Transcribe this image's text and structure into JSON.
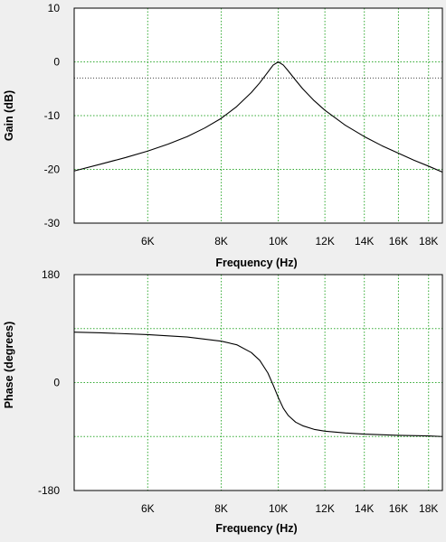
{
  "chart_data": [
    {
      "type": "line",
      "xlabel": "Frequency (Hz)",
      "ylabel": "Gain (dB)",
      "x_scale": "log",
      "xlim": [
        4500,
        19000
      ],
      "ylim": [
        -30,
        10
      ],
      "grid": true,
      "x_ticks": [
        6000,
        8000,
        10000,
        12000,
        14000,
        16000,
        18000
      ],
      "x_tick_labels": [
        "6K",
        "8K",
        "10K",
        "12K",
        "14K",
        "16K",
        "18K"
      ],
      "y_ticks": [
        10,
        0,
        -10,
        -20,
        -30
      ],
      "y_tick_labels": [
        "10",
        "0",
        "-10",
        "-20",
        "-30"
      ],
      "reference_line": {
        "y": -3,
        "style": "dotted"
      },
      "series": [
        {
          "x": [
            4500,
            5000,
            5500,
            6000,
            6500,
            7000,
            7500,
            8000,
            8500,
            9000,
            9300,
            9600,
            9800,
            10000,
            10200,
            10400,
            10700,
            11000,
            11500,
            12000,
            13000,
            14000,
            15000,
            16000,
            17000,
            18000,
            19000
          ],
          "y": [
            -20.3,
            -19.0,
            -17.8,
            -16.6,
            -15.3,
            -13.9,
            -12.3,
            -10.5,
            -8.3,
            -5.7,
            -3.9,
            -1.9,
            -0.6,
            0.0,
            -0.6,
            -1.7,
            -3.4,
            -5.0,
            -7.2,
            -9.0,
            -11.8,
            -13.9,
            -15.6,
            -17.0,
            -18.3,
            -19.4,
            -20.5
          ]
        }
      ]
    },
    {
      "type": "line",
      "xlabel": "Frequency (Hz)",
      "ylabel": "Phase (degrees)",
      "x_scale": "log",
      "xlim": [
        4500,
        19000
      ],
      "ylim": [
        -180,
        180
      ],
      "grid": true,
      "x_ticks": [
        6000,
        8000,
        10000,
        12000,
        14000,
        16000,
        18000
      ],
      "x_tick_labels": [
        "6K",
        "8K",
        "10K",
        "12K",
        "14K",
        "16K",
        "18K"
      ],
      "y_ticks": [
        180,
        90,
        0,
        -90,
        -180
      ],
      "y_tick_labels": [
        "180",
        "",
        "0",
        "",
        "-180"
      ],
      "series": [
        {
          "x": [
            4500,
            5000,
            6000,
            7000,
            8000,
            8500,
            9000,
            9300,
            9600,
            9800,
            10000,
            10200,
            10400,
            10700,
            11000,
            11500,
            12000,
            13000,
            14000,
            16000,
            18000,
            19000
          ],
          "y": [
            84,
            83,
            80,
            76,
            69,
            63,
            50,
            37,
            16,
            -4,
            -25,
            -43,
            -55,
            -66,
            -72,
            -78,
            -81,
            -84,
            -86,
            -88,
            -89,
            -90
          ]
        }
      ]
    }
  ]
}
